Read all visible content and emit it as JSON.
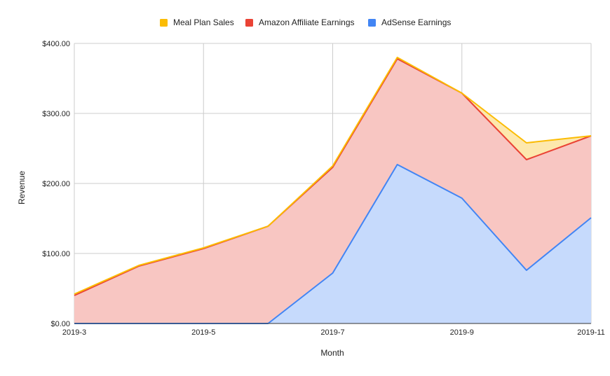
{
  "chart_data": {
    "type": "area",
    "stacked": true,
    "xlabel": "Month",
    "ylabel": "Revenue",
    "x": [
      "2019-3",
      "2019-4",
      "2019-5",
      "2019-6",
      "2019-7",
      "2019-8",
      "2019-9",
      "2019-10",
      "2019-11"
    ],
    "x_tick_labels": [
      "2019-3",
      "2019-5",
      "2019-7",
      "2019-9",
      "2019-11"
    ],
    "ylim": [
      0,
      400
    ],
    "y_tick_labels": [
      "$0.00",
      "$100.00",
      "$200.00",
      "$300.00",
      "$400.00"
    ],
    "y_ticks": [
      0,
      100,
      200,
      300,
      400
    ],
    "grid": true,
    "legend_position": "top",
    "series": [
      {
        "name": "AdSense Earnings",
        "color": "#4285f4",
        "fill": "#c6dafc",
        "values": [
          0,
          0,
          0,
          0,
          72,
          227,
          179,
          76,
          151
        ]
      },
      {
        "name": "Amazon Affiliate Earnings",
        "color": "#ea4335",
        "fill": "#f8c6c2",
        "values": [
          40,
          82,
          107,
          139,
          151,
          151,
          150,
          158,
          117
        ]
      },
      {
        "name": "Meal Plan Sales",
        "color": "#fbbc04",
        "fill": "#fde8ad",
        "values": [
          2,
          1,
          1,
          0,
          2,
          2,
          0,
          24,
          0
        ]
      }
    ],
    "legend_order": [
      "Meal Plan Sales",
      "Amazon Affiliate Earnings",
      "AdSense Earnings"
    ]
  }
}
